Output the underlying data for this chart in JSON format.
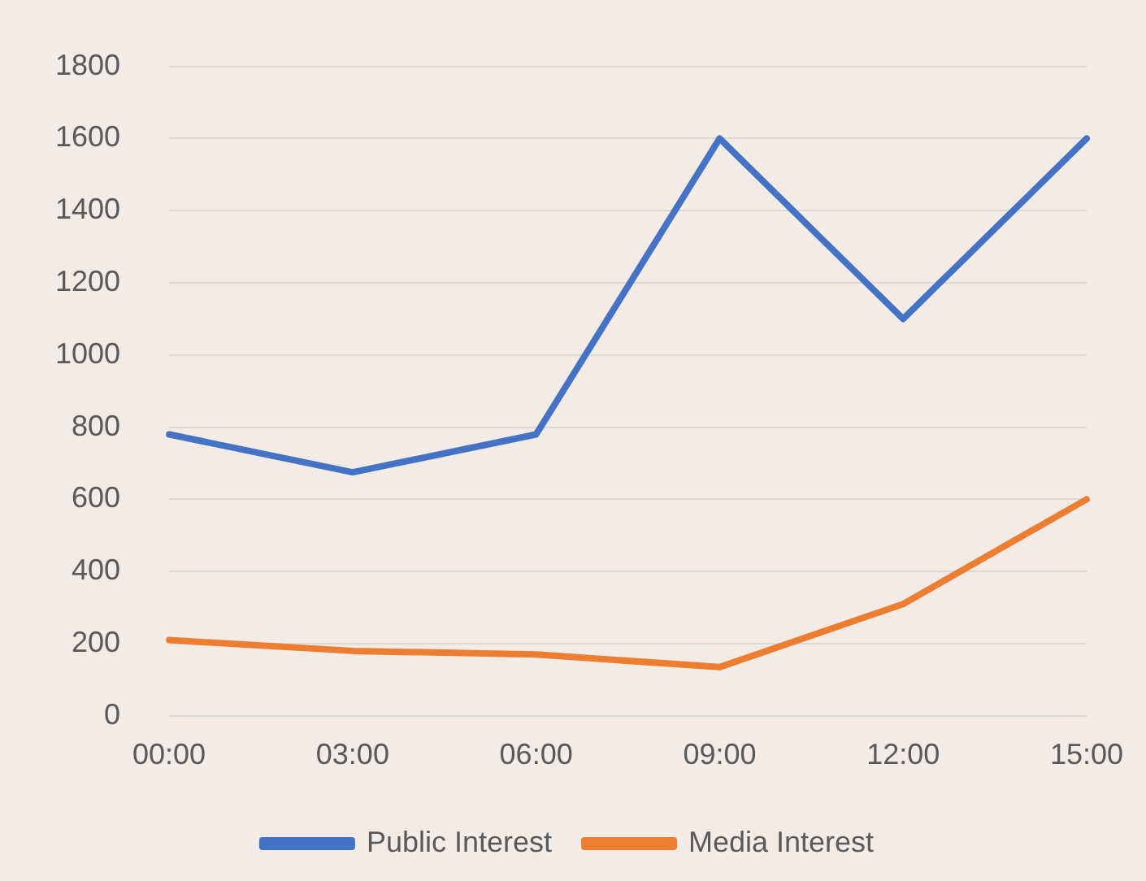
{
  "chart_data": {
    "type": "line",
    "categories": [
      "00:00",
      "03:00",
      "06:00",
      "09:00",
      "12:00",
      "15:00"
    ],
    "series": [
      {
        "name": "Public Interest",
        "color": "#4472c4",
        "values": [
          780,
          675,
          780,
          1600,
          1100,
          1600
        ]
      },
      {
        "name": "Media Interest",
        "color": "#ed7d31",
        "values": [
          210,
          180,
          170,
          135,
          310,
          600
        ]
      }
    ],
    "ylim": [
      0,
      1800
    ],
    "yticks": [
      0,
      200,
      400,
      600,
      800,
      1000,
      1200,
      1400,
      1600,
      1800
    ],
    "grid": "y",
    "legend": "bottom",
    "marker": "none",
    "line_style": "solid"
  }
}
